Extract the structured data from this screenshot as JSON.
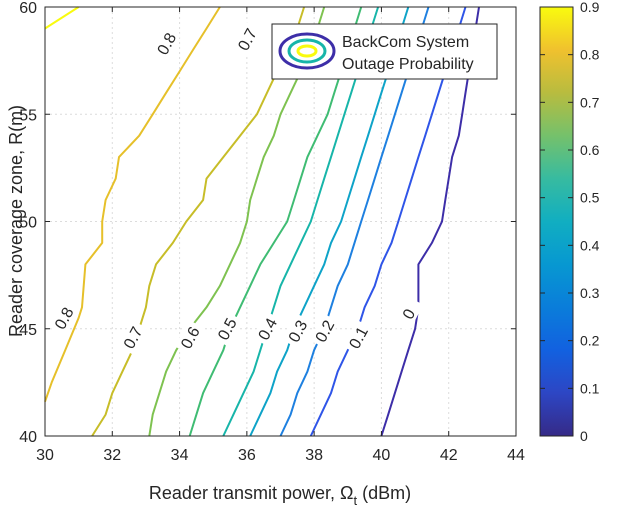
{
  "chart_data": {
    "type": "contour",
    "title": "",
    "xlabel_main": "Reader transmit power, Ω",
    "xlabel_sub": "t",
    "xlabel_unit": " (dBm)",
    "ylabel": "Reader coverage zone, R(m)",
    "xlim": [
      30,
      44
    ],
    "ylim": [
      40,
      60
    ],
    "xticks": [
      "30",
      "32",
      "34",
      "36",
      "38",
      "40",
      "42",
      "44"
    ],
    "yticks": [
      "40",
      "45",
      "50",
      "55",
      "60"
    ],
    "grid": true,
    "colorbar": {
      "range": [
        0,
        0.9
      ],
      "ticks": [
        "0",
        "0.1",
        "0.2",
        "0.3",
        "0.4",
        "0.5",
        "0.6",
        "0.7",
        "0.8",
        "0.9"
      ],
      "colormap": "parula"
    },
    "legend": {
      "position": "top-right",
      "line1": "BackCom System",
      "line2": "Outage Probability"
    },
    "levels": [
      {
        "level": 0.9,
        "label": "",
        "color": "#f9fb0e",
        "points": [
          [
            30,
            59
          ],
          [
            31,
            60
          ]
        ]
      },
      {
        "level": 0.8,
        "label": "0.8",
        "color": "#e6c02a",
        "points": [
          [
            30,
            41.6
          ],
          [
            30.2,
            42.5
          ],
          [
            30.6,
            44
          ],
          [
            31.0,
            45.5
          ],
          [
            31.1,
            46
          ],
          [
            31.2,
            48
          ],
          [
            31.7,
            49
          ],
          [
            31.7,
            50
          ],
          [
            31.8,
            51
          ],
          [
            32.1,
            52
          ],
          [
            32.2,
            53
          ],
          [
            32.8,
            54
          ],
          [
            33.2,
            55
          ],
          [
            33.6,
            56
          ],
          [
            34.0,
            57
          ],
          [
            34.4,
            58
          ],
          [
            34.8,
            59
          ],
          [
            35.2,
            60
          ]
        ],
        "labels_at": [
          [
            30.55,
            45.5
          ],
          [
            33.6,
            58.3
          ]
        ]
      },
      {
        "level": 0.7,
        "label": "0.7",
        "color": "#c7bd28",
        "points": [
          [
            31.4,
            40
          ],
          [
            31.8,
            41
          ],
          [
            32.0,
            42
          ],
          [
            32.3,
            43
          ],
          [
            32.6,
            44
          ],
          [
            32.8,
            45
          ],
          [
            33.0,
            46
          ],
          [
            33.1,
            47
          ],
          [
            33.3,
            48
          ],
          [
            33.8,
            49
          ],
          [
            34.2,
            50
          ],
          [
            34.7,
            51
          ],
          [
            34.8,
            52
          ],
          [
            35.3,
            53
          ],
          [
            35.8,
            54
          ],
          [
            36.3,
            55
          ],
          [
            36.6,
            56
          ],
          [
            36.9,
            57
          ],
          [
            37.2,
            58
          ],
          [
            37.5,
            59
          ],
          [
            37.7,
            60
          ]
        ],
        "labels_at": [
          [
            32.6,
            44.6
          ],
          [
            36.0,
            58.5
          ]
        ]
      },
      {
        "level": 0.6,
        "label": "0.6",
        "color": "#7ec250",
        "points": [
          [
            33.1,
            40
          ],
          [
            33.2,
            41
          ],
          [
            33.4,
            42
          ],
          [
            33.6,
            43
          ],
          [
            33.9,
            44
          ],
          [
            34.3,
            45
          ],
          [
            34.8,
            46
          ],
          [
            35.2,
            47
          ],
          [
            35.5,
            48
          ],
          [
            35.8,
            49
          ],
          [
            36.0,
            50
          ],
          [
            36.1,
            51
          ],
          [
            36.3,
            52
          ],
          [
            36.5,
            53
          ],
          [
            36.8,
            54
          ],
          [
            37.0,
            55
          ],
          [
            37.3,
            56
          ],
          [
            37.6,
            57
          ],
          [
            37.9,
            58
          ],
          [
            38.1,
            59
          ],
          [
            38.3,
            60
          ]
        ],
        "labels_at": [
          [
            34.3,
            44.6
          ]
        ]
      },
      {
        "level": 0.5,
        "label": "0.5",
        "color": "#3fbc73",
        "points": [
          [
            34.3,
            40
          ],
          [
            34.5,
            41
          ],
          [
            34.7,
            42
          ],
          [
            35.0,
            43
          ],
          [
            35.3,
            44
          ],
          [
            35.5,
            45
          ],
          [
            35.8,
            46
          ],
          [
            36.1,
            47
          ],
          [
            36.4,
            48
          ],
          [
            36.8,
            49
          ],
          [
            37.2,
            50
          ],
          [
            37.4,
            51
          ],
          [
            37.6,
            52
          ],
          [
            37.8,
            53
          ],
          [
            38.1,
            54
          ],
          [
            38.4,
            55
          ],
          [
            38.6,
            56
          ],
          [
            38.8,
            57
          ],
          [
            39.0,
            58
          ],
          [
            39.2,
            59
          ],
          [
            39.4,
            60
          ]
        ],
        "labels_at": [
          [
            35.4,
            45.0
          ]
        ]
      },
      {
        "level": 0.4,
        "label": "0.4",
        "color": "#17b5a9",
        "points": [
          [
            35.3,
            40
          ],
          [
            35.6,
            41
          ],
          [
            35.9,
            42
          ],
          [
            36.2,
            43
          ],
          [
            36.4,
            44
          ],
          [
            36.6,
            45
          ],
          [
            36.8,
            46
          ],
          [
            37.0,
            47
          ],
          [
            37.3,
            48
          ],
          [
            37.6,
            49
          ],
          [
            37.9,
            50
          ],
          [
            38.1,
            51
          ],
          [
            38.3,
            52
          ],
          [
            38.5,
            53
          ],
          [
            38.7,
            54
          ],
          [
            38.9,
            55
          ],
          [
            39.1,
            56
          ],
          [
            39.3,
            57
          ],
          [
            39.5,
            58
          ],
          [
            39.7,
            59
          ],
          [
            39.9,
            60
          ]
        ],
        "labels_at": [
          [
            36.6,
            45.0
          ]
        ]
      },
      {
        "level": 0.3,
        "label": "0.3",
        "color": "#0ea3c8",
        "points": [
          [
            36.1,
            40
          ],
          [
            36.4,
            41
          ],
          [
            36.7,
            42
          ],
          [
            36.9,
            43
          ],
          [
            37.2,
            44
          ],
          [
            37.4,
            45
          ],
          [
            37.7,
            46
          ],
          [
            38.0,
            47
          ],
          [
            38.3,
            48
          ],
          [
            38.5,
            49
          ],
          [
            38.8,
            50
          ],
          [
            39.0,
            51
          ],
          [
            39.2,
            52
          ],
          [
            39.4,
            53
          ],
          [
            39.6,
            54
          ],
          [
            39.8,
            55
          ],
          [
            40.0,
            56
          ],
          [
            40.2,
            57
          ],
          [
            40.4,
            58
          ],
          [
            40.6,
            59
          ],
          [
            40.8,
            60
          ]
        ],
        "labels_at": [
          [
            37.5,
            44.9
          ]
        ]
      },
      {
        "level": 0.2,
        "label": "0.2",
        "color": "#1e80e0",
        "points": [
          [
            37.0,
            40
          ],
          [
            37.3,
            41
          ],
          [
            37.5,
            42
          ],
          [
            37.8,
            43
          ],
          [
            38.0,
            44
          ],
          [
            38.3,
            45
          ],
          [
            38.5,
            46
          ],
          [
            38.7,
            47
          ],
          [
            39.0,
            48
          ],
          [
            39.2,
            49
          ],
          [
            39.4,
            50
          ],
          [
            39.6,
            51
          ],
          [
            39.8,
            52
          ],
          [
            40.0,
            53
          ],
          [
            40.2,
            54
          ],
          [
            40.4,
            55
          ],
          [
            40.6,
            56
          ],
          [
            40.8,
            57
          ],
          [
            41.0,
            58
          ],
          [
            41.2,
            59
          ],
          [
            41.4,
            60
          ]
        ],
        "labels_at": [
          [
            38.3,
            44.9
          ]
        ]
      },
      {
        "level": 0.1,
        "label": "0.1",
        "color": "#2f55e8",
        "points": [
          [
            37.9,
            40
          ],
          [
            38.2,
            41
          ],
          [
            38.5,
            42
          ],
          [
            38.7,
            43
          ],
          [
            39.0,
            44
          ],
          [
            39.3,
            45
          ],
          [
            39.5,
            46
          ],
          [
            39.8,
            47
          ],
          [
            40.0,
            48
          ],
          [
            40.3,
            49
          ],
          [
            40.5,
            50
          ],
          [
            40.7,
            51
          ],
          [
            40.9,
            52
          ],
          [
            41.1,
            53
          ],
          [
            41.3,
            54
          ],
          [
            41.5,
            55
          ],
          [
            41.7,
            56
          ],
          [
            41.9,
            57
          ],
          [
            42.1,
            58
          ],
          [
            42.3,
            59
          ],
          [
            42.5,
            60
          ]
        ],
        "labels_at": [
          [
            39.3,
            44.6
          ]
        ]
      },
      {
        "level": 0,
        "label": "0",
        "color": "#3d2ea8",
        "points": [
          [
            40.0,
            40
          ],
          [
            40.2,
            41
          ],
          [
            40.4,
            42
          ],
          [
            40.6,
            43
          ],
          [
            40.8,
            44
          ],
          [
            41.0,
            45
          ],
          [
            41.1,
            46
          ],
          [
            41.1,
            47
          ],
          [
            41.1,
            48
          ],
          [
            41.5,
            49
          ],
          [
            41.8,
            50
          ],
          [
            41.9,
            51
          ],
          [
            42.0,
            52
          ],
          [
            42.1,
            53
          ],
          [
            42.3,
            54
          ],
          [
            42.4,
            55
          ],
          [
            42.5,
            56
          ],
          [
            42.6,
            57
          ],
          [
            42.7,
            58
          ],
          [
            42.8,
            59
          ],
          [
            42.9,
            60
          ]
        ],
        "labels_at": [
          [
            40.8,
            45.7
          ]
        ]
      }
    ]
  }
}
